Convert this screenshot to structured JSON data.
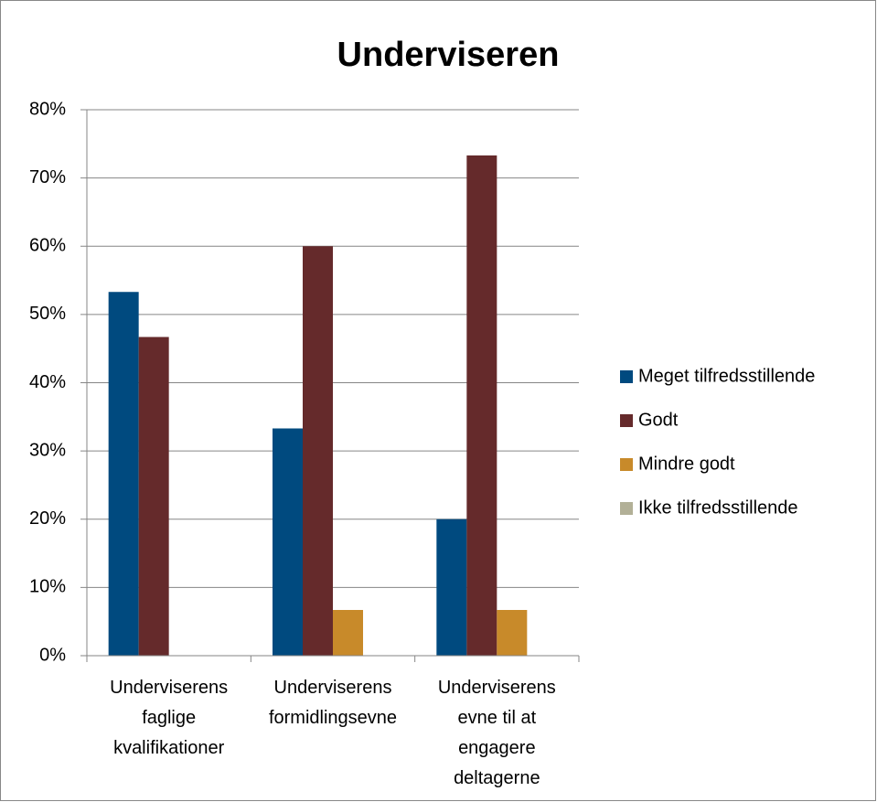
{
  "chart_data": {
    "type": "bar",
    "title": "Underviseren",
    "categories": [
      "Underviserens faglige kvalifikationer",
      "Underviserens formidlingsevne",
      "Underviserens evne til at engagere deltagerne"
    ],
    "series": [
      {
        "name": "Meget tilfredsstillende",
        "color": "#004a7f",
        "values": [
          53.3,
          33.3,
          20
        ]
      },
      {
        "name": "Godt",
        "color": "#652a2b",
        "values": [
          46.7,
          60,
          73.3
        ]
      },
      {
        "name": "Mindre godt",
        "color": "#c88a2a",
        "values": [
          0,
          6.7,
          6.7
        ]
      },
      {
        "name": "Ikke tilfredsstillende",
        "color": "#b2b097",
        "values": [
          0,
          0,
          0
        ]
      }
    ],
    "ylim": [
      0,
      80
    ],
    "yticks": [
      {
        "value": 0,
        "label": "0%"
      },
      {
        "value": 10,
        "label": "10%"
      },
      {
        "value": 20,
        "label": "20%"
      },
      {
        "value": 30,
        "label": "30%"
      },
      {
        "value": 40,
        "label": "40%"
      },
      {
        "value": 50,
        "label": "50%"
      },
      {
        "value": 60,
        "label": "60%"
      },
      {
        "value": 70,
        "label": "70%"
      },
      {
        "value": 80,
        "label": "80%"
      }
    ],
    "grid": true,
    "legend": "right"
  }
}
